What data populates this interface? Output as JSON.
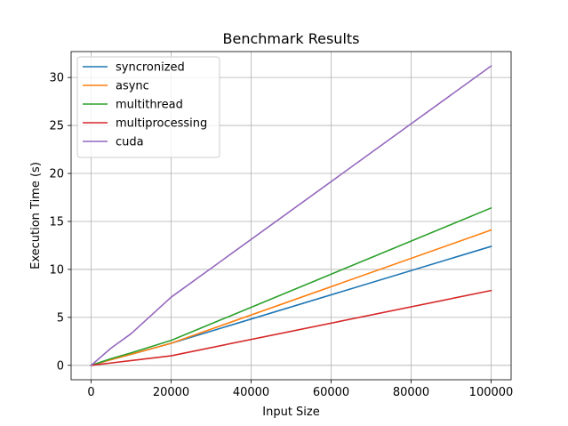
{
  "chart_data": {
    "type": "line",
    "title": "Benchmark Results",
    "xlabel": "Input Size",
    "ylabel": "Execution Time (s)",
    "xlim": [
      -5000,
      105000
    ],
    "ylim": [
      -1.5,
      32.7
    ],
    "xticks": [
      0,
      20000,
      40000,
      60000,
      80000,
      100000
    ],
    "xtick_labels": [
      "0",
      "20000",
      "40000",
      "60000",
      "80000",
      "100000"
    ],
    "yticks": [
      0,
      5,
      10,
      15,
      20,
      25,
      30
    ],
    "ytick_labels": [
      "0",
      "5",
      "10",
      "15",
      "20",
      "25",
      "30"
    ],
    "grid": true,
    "legend_position": "upper-left",
    "series": [
      {
        "name": "syncronized",
        "color": "#1f77b4",
        "x": [
          0,
          5000,
          10000,
          20000,
          100000
        ],
        "y": [
          0.0,
          0.6,
          1.15,
          2.3,
          12.4
        ]
      },
      {
        "name": "async",
        "color": "#ff7f0e",
        "x": [
          0,
          5000,
          10000,
          20000,
          100000
        ],
        "y": [
          0.0,
          0.6,
          1.15,
          2.3,
          14.1
        ]
      },
      {
        "name": "multithread",
        "color": "#2ca02c",
        "x": [
          0,
          5000,
          10000,
          20000,
          100000
        ],
        "y": [
          0.0,
          0.7,
          1.3,
          2.6,
          16.4
        ]
      },
      {
        "name": "multiprocessing",
        "color": "#d62728",
        "x": [
          0,
          5000,
          10000,
          20000,
          100000
        ],
        "y": [
          0.0,
          0.25,
          0.5,
          1.0,
          7.8
        ]
      },
      {
        "name": "cuda",
        "color": "#9467bd",
        "x": [
          0,
          5000,
          10000,
          20000,
          100000
        ],
        "y": [
          0.0,
          1.8,
          3.3,
          7.1,
          31.2
        ]
      }
    ]
  }
}
